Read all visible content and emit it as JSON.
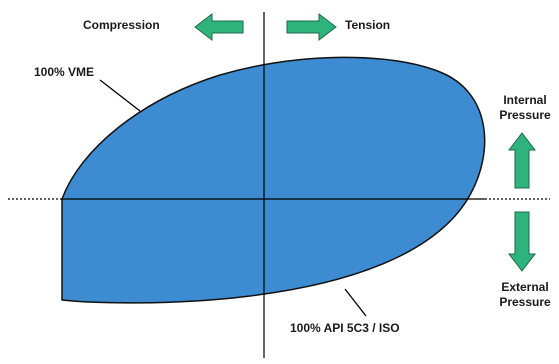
{
  "labels": {
    "compression": "Compression",
    "tension": "Tension",
    "vme": "100% VME",
    "internal_line1": "Internal",
    "internal_line2": "Pressure",
    "external_line1": "External",
    "external_line2": "Pressure",
    "api": "100% API 5C3 / ISO"
  },
  "colors": {
    "envelope_fill": "#3d8bd0",
    "envelope_stroke": "#111111",
    "arrow_fill": "#2fb37d",
    "arrow_stroke": "#1d6b4a",
    "axis": "#000000"
  },
  "icons": {
    "compression_arrow": "arrow-left-icon",
    "tension_arrow": "arrow-right-icon",
    "internal_arrow": "arrow-up-icon",
    "external_arrow": "arrow-down-icon"
  }
}
